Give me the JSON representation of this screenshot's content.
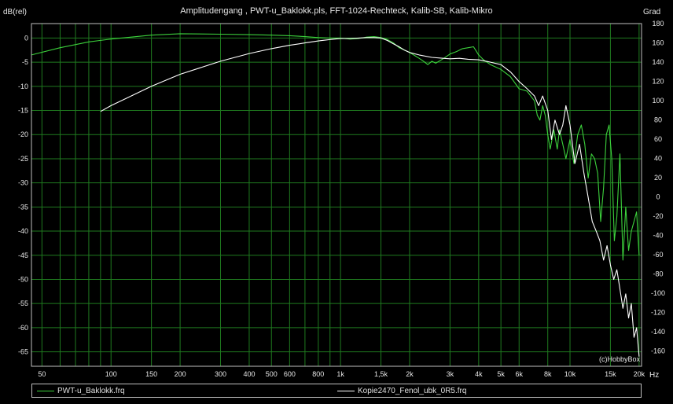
{
  "chart_data": {
    "type": "line",
    "title": "Amplitudengang , PWT-u_Baklokk.pls, FFT-1024-Rechteck, Kalib-SB, Kalib-Mikro",
    "ylabel": "dB(rel)",
    "y2label": "Grad",
    "xlabel": "Hz",
    "watermark": "(c)HobbyBox",
    "xscale": "log",
    "xlim": [
      45,
      20500
    ],
    "ylim": [
      -68,
      3
    ],
    "y2lim": [
      -176,
      180
    ],
    "grid": true,
    "legend_position": "bottom",
    "colors": {
      "grid": "#1f7a1f",
      "series1": "#3cd13c",
      "series2": "#ffffff",
      "frame": "#bfbfbf"
    },
    "x_ticks": [
      {
        "v": 50,
        "label": "50"
      },
      {
        "v": 100,
        "label": "100"
      },
      {
        "v": 150,
        "label": "150"
      },
      {
        "v": 200,
        "label": "200"
      },
      {
        "v": 300,
        "label": "300"
      },
      {
        "v": 400,
        "label": "400"
      },
      {
        "v": 500,
        "label": "500"
      },
      {
        "v": 600,
        "label": "600"
      },
      {
        "v": 800,
        "label": "800"
      },
      {
        "v": 1000,
        "label": "1k"
      },
      {
        "v": 1500,
        "label": "1,5k"
      },
      {
        "v": 2000,
        "label": "2k"
      },
      {
        "v": 3000,
        "label": "3k"
      },
      {
        "v": 4000,
        "label": "4k"
      },
      {
        "v": 5000,
        "label": "5k"
      },
      {
        "v": 6000,
        "label": "6k"
      },
      {
        "v": 8000,
        "label": "8k"
      },
      {
        "v": 10000,
        "label": "10k"
      },
      {
        "v": 15000,
        "label": "15k"
      },
      {
        "v": 20000,
        "label": "20k"
      }
    ],
    "x_minor": [
      60,
      70,
      80,
      90,
      700,
      900
    ],
    "y_ticks": [
      0,
      -5,
      -10,
      -15,
      -20,
      -25,
      -30,
      -35,
      -40,
      -45,
      -50,
      -55,
      -60,
      -65
    ],
    "y2_ticks": [
      180,
      160,
      140,
      120,
      100,
      80,
      60,
      40,
      20,
      0,
      -20,
      -40,
      -60,
      -80,
      -100,
      -120,
      -140,
      -160
    ],
    "series": [
      {
        "name": "PWT-u_Baklokk.frq",
        "x": [
          45,
          60,
          80,
          100,
          150,
          200,
          300,
          400,
          500,
          600,
          700,
          800,
          900,
          1000,
          1100,
          1200,
          1300,
          1400,
          1500,
          1600,
          1700,
          1800,
          1900,
          2000,
          2100,
          2200,
          2300,
          2400,
          2500,
          2600,
          2800,
          3000,
          3200,
          3400,
          3600,
          3800,
          4000,
          4200,
          4500,
          5000,
          5500,
          6000,
          6500,
          7000,
          7200,
          7400,
          7600,
          7800,
          8000,
          8200,
          8500,
          8800,
          9000,
          9300,
          9600,
          10000,
          10400,
          10800,
          11200,
          11600,
          12000,
          12400,
          12800,
          13200,
          13600,
          14000,
          14400,
          14800,
          15200,
          15600,
          16000,
          16500,
          17000,
          17500,
          18000,
          18500,
          19000,
          19500,
          20000
        ],
        "y": [
          -3.5,
          -2,
          -0.8,
          -0.2,
          0.6,
          0.9,
          0.8,
          0.7,
          0.6,
          0.5,
          0.3,
          0.1,
          0,
          0,
          -0.2,
          -0.1,
          0.2,
          0.3,
          0.1,
          -0.3,
          -1,
          -2,
          -2.5,
          -3,
          -3.6,
          -4.2,
          -4.8,
          -5.5,
          -4.8,
          -5.2,
          -4.3,
          -3.3,
          -2.8,
          -2.2,
          -2,
          -1.8,
          -3.5,
          -4.5,
          -5.5,
          -6.5,
          -8,
          -10.5,
          -11,
          -13,
          -16,
          -17,
          -14,
          -16,
          -20,
          -23,
          -19,
          -23,
          -19,
          -22,
          -25,
          -21,
          -26,
          -20,
          -18,
          -22,
          -29,
          -24,
          -25,
          -28,
          -38,
          -31,
          -20,
          -18,
          -25,
          -42,
          -37,
          -24,
          -46,
          -35,
          -44,
          -40,
          -38,
          -36,
          -45
        ]
      },
      {
        "name": "Kopie2470_Fenol_ubk_0R5.frq",
        "x": [
          90,
          100,
          150,
          200,
          300,
          400,
          500,
          600,
          700,
          800,
          900,
          1000,
          1100,
          1200,
          1300,
          1400,
          1500,
          1600,
          1700,
          1800,
          1900,
          2000,
          2200,
          2500,
          2800,
          3000,
          3300,
          3600,
          4000,
          4500,
          5000,
          5500,
          6000,
          6500,
          7000,
          7300,
          7600,
          8000,
          8300,
          8600,
          9000,
          9300,
          9600,
          10000,
          10500,
          11000,
          11500,
          12000,
          12500,
          13000,
          13500,
          14000,
          14500,
          15000,
          15500,
          16000,
          16500,
          17000,
          17500,
          18000,
          18500,
          19000,
          19500,
          20000
        ],
        "y": [
          -15.2,
          -14,
          -10,
          -7.5,
          -4.8,
          -3.2,
          -2.2,
          -1.5,
          -1,
          -0.6,
          -0.3,
          -0.1,
          -0.1,
          0,
          0.1,
          0.1,
          0,
          -0.5,
          -1.2,
          -1.8,
          -2.5,
          -3,
          -3.5,
          -4,
          -4.2,
          -4.3,
          -4.2,
          -4.4,
          -4.5,
          -5,
          -5.5,
          -7,
          -9,
          -10.5,
          -12,
          -14,
          -12,
          -15,
          -21,
          -17,
          -20,
          -18,
          -14,
          -18,
          -26,
          -22,
          -28,
          -33,
          -38,
          -40,
          -42,
          -46,
          -43,
          -47,
          -50,
          -48,
          -52,
          -56,
          -53,
          -58,
          -55,
          -62,
          -60,
          -66
        ]
      }
    ]
  }
}
